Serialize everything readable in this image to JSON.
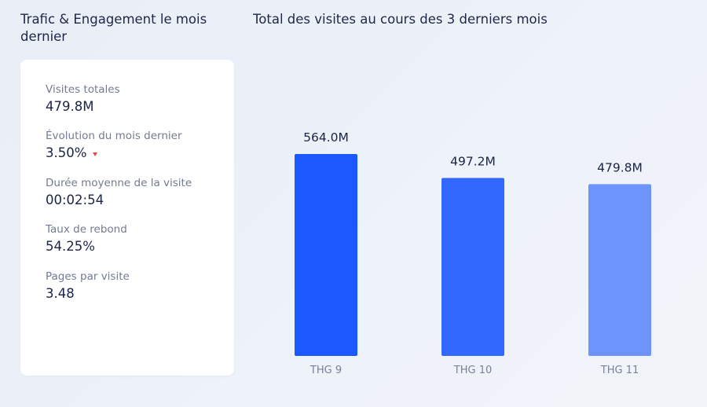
{
  "left_panel": {
    "title": "Trafic & Engagement le mois dernier",
    "stats": [
      {
        "label": "Visites totales",
        "value": "479.8M"
      },
      {
        "label": "Évolution du mois dernier",
        "value": "3.50%",
        "trend": "down",
        "trend_color": "#e5484d"
      },
      {
        "label": "Durée moyenne de la visite",
        "value": "00:02:54"
      },
      {
        "label": "Taux de rebond",
        "value": "54.25%"
      },
      {
        "label": "Pages par visite",
        "value": "3.48"
      }
    ]
  },
  "chart_data": {
    "type": "bar",
    "title": "Total des visites au cours des 3 derniers mois",
    "categories": [
      "THG 9",
      "THG 10",
      "THG 11"
    ],
    "values": [
      564.0,
      497.2,
      479.8
    ],
    "value_labels": [
      "564.0M",
      "497.2M",
      "479.8M"
    ],
    "unit": "M",
    "bar_colors": [
      "#1b58ff",
      "#3368ff",
      "#6d94fb"
    ],
    "grid": false,
    "legend": "none"
  }
}
